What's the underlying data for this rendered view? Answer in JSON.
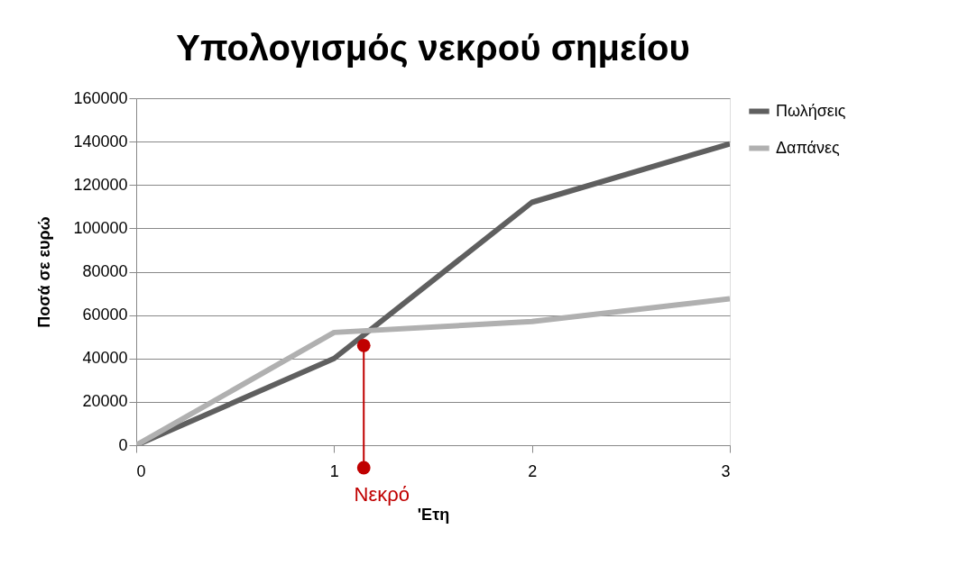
{
  "chart_data": {
    "type": "line",
    "title": "Υπολογισμός νεκρού σημείου",
    "xlabel": "'Ετη",
    "ylabel": "Ποσά σε ευρώ",
    "x": [
      0,
      1,
      2,
      3
    ],
    "series": [
      {
        "name": "Πωλήσεις",
        "color": "#5f5f5f",
        "values": [
          0,
          40000,
          112000,
          139000
        ]
      },
      {
        "name": "Δαπάνες",
        "color": "#b0b0b0",
        "values": [
          0,
          52000,
          57000,
          67500
        ]
      },
      {
        "type": "scatter",
        "color": "#c00000",
        "marker": "circle",
        "x": [
          1.15
        ],
        "values": [
          46000
        ]
      }
    ],
    "xlim": [
      0,
      3
    ],
    "xticks": [
      0,
      1,
      2,
      3
    ],
    "ylim": [
      0,
      160000
    ],
    "yticks": [
      0,
      20000,
      40000,
      60000,
      80000,
      100000,
      120000,
      140000,
      160000
    ],
    "grid": "y",
    "legend": "right",
    "annotations": [
      "Νεκρό"
    ]
  }
}
